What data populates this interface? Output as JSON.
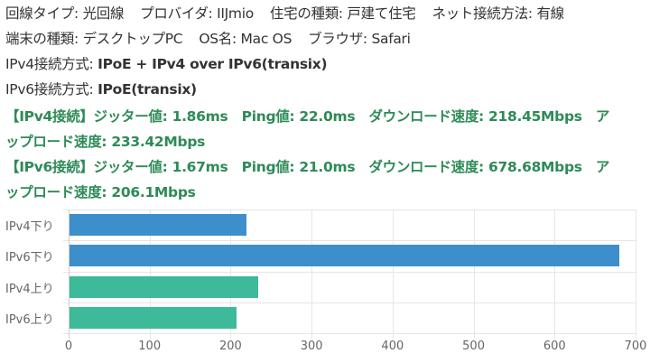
{
  "info": {
    "line_type_label": "回線タイプ: ",
    "line_type": "光回線",
    "provider_label": "プロバイダ: ",
    "provider": "IIJmio",
    "housing_label": "住宅の種類: ",
    "housing": "戸建て住宅",
    "net_method_label": "ネット接続方法: ",
    "net_method": "有線",
    "device_label": "端末の種類: ",
    "device": "デスクトップPC",
    "os_label": "OS名: ",
    "os": "Mac OS",
    "browser_label": "ブラウザ: ",
    "browser": "Safari",
    "ipv4_method_label": "IPv4接続方式: ",
    "ipv4_method": "IPoE + IPv4 over IPv6(transix)",
    "ipv6_method_label": "IPv6接続方式: ",
    "ipv6_method": "IPoE(transix)"
  },
  "results": {
    "ipv4": {
      "line1": "【IPv4接続】ジッター値: 1.86ms　Ping値: 22.0ms　ダウンロード速度: 218.45Mbps　ア",
      "line2": "ップロード速度: 233.42Mbps"
    },
    "ipv6": {
      "line1": "【IPv6接続】ジッター値: 1.67ms　Ping値: 21.0ms　ダウンロード速度: 678.68Mbps　ア",
      "line2": "ップロード速度: 206.1Mbps"
    }
  },
  "colors": {
    "download": "#3d8fcc",
    "upload": "#3dba9a",
    "result_text": "#2e8b57"
  },
  "chart_data": {
    "type": "bar",
    "orientation": "horizontal",
    "categories": [
      "IPv4下り",
      "IPv6下り",
      "IPv4上り",
      "IPv6上り"
    ],
    "values": [
      218.45,
      678.68,
      233.42,
      206.1
    ],
    "bar_colors": [
      "#3d8fcc",
      "#3d8fcc",
      "#3dba9a",
      "#3dba9a"
    ],
    "title": "",
    "xlabel": "",
    "ylabel": "",
    "xlim": [
      0,
      700
    ],
    "xticks": [
      "0",
      "100",
      "200",
      "300",
      "400",
      "500",
      "600",
      "700"
    ],
    "grid": true,
    "legend": "none"
  }
}
